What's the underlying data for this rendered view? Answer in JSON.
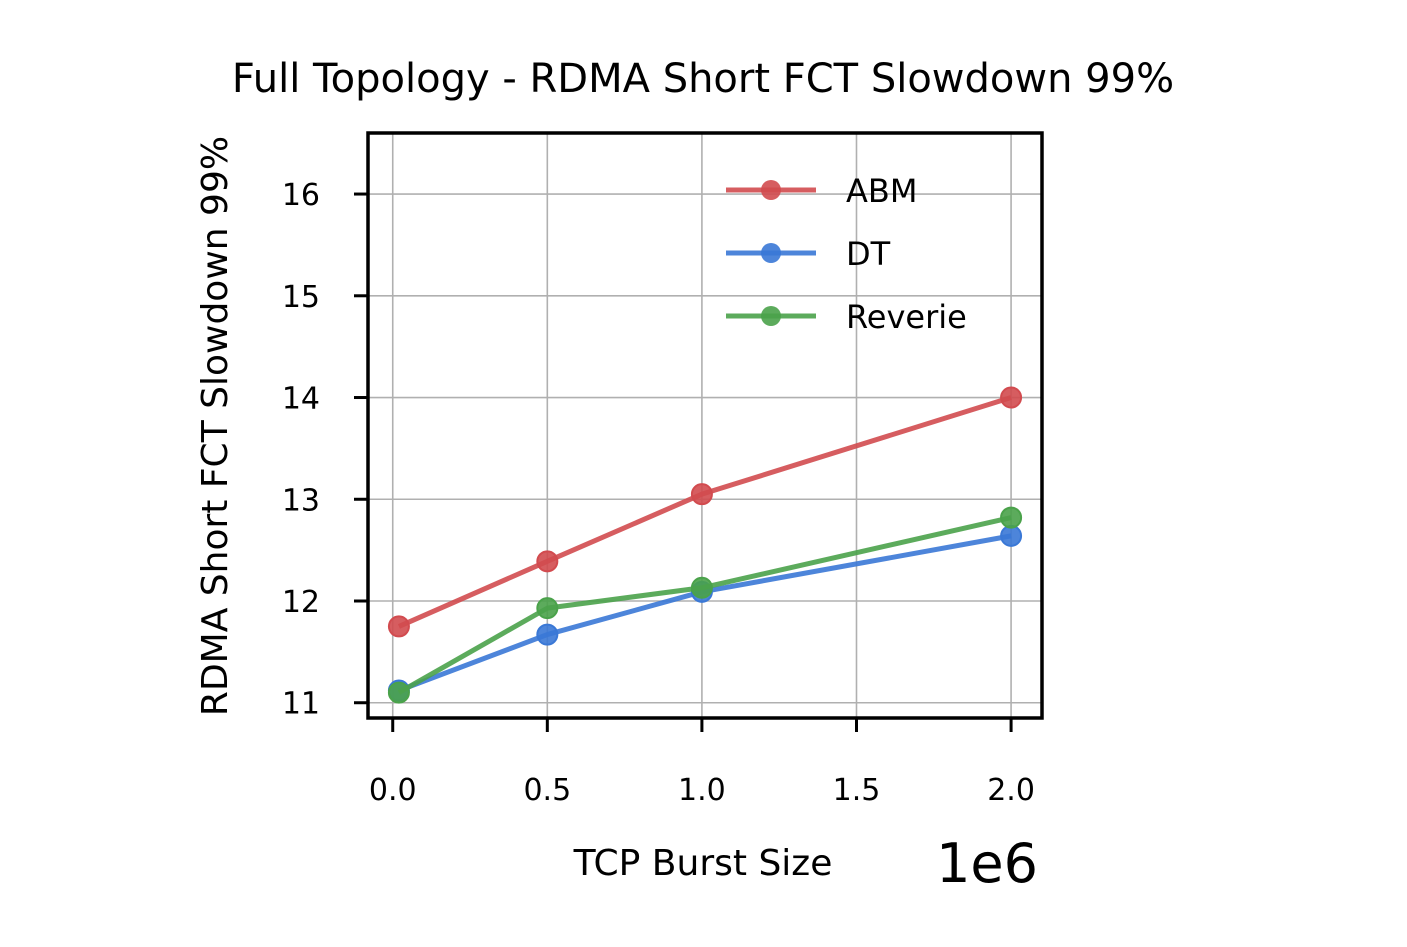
{
  "chart_data": {
    "type": "line",
    "title": "Full Topology - RDMA Short FCT Slowdown 99%",
    "xlabel": "TCP Burst Size",
    "ylabel": "RDMA Short FCT Slowdown 99%",
    "x_offset_label": "1e6",
    "x": [
      0.02,
      0.5,
      1.0,
      2.0
    ],
    "xlim": [
      -0.08,
      2.1
    ],
    "ylim": [
      10.85,
      16.6
    ],
    "xticks": [
      0.0,
      0.5,
      1.0,
      1.5,
      2.0
    ],
    "xtick_labels": [
      "0.0",
      "0.5",
      "1.0",
      "1.5",
      "2.0"
    ],
    "yticks": [
      11,
      12,
      13,
      14,
      15,
      16
    ],
    "ytick_labels": [
      "11",
      "12",
      "13",
      "14",
      "15",
      "16"
    ],
    "grid": true,
    "legend_position": "top-right",
    "series": [
      {
        "name": "ABM",
        "color": "#d24b4f",
        "values": [
          11.75,
          12.39,
          13.05,
          14.0
        ]
      },
      {
        "name": "DT",
        "color": "#3a78d6",
        "values": [
          11.12,
          11.67,
          12.09,
          12.64
        ]
      },
      {
        "name": "Reverie",
        "color": "#4aa24a",
        "values": [
          11.1,
          11.93,
          12.13,
          12.82
        ]
      }
    ]
  }
}
